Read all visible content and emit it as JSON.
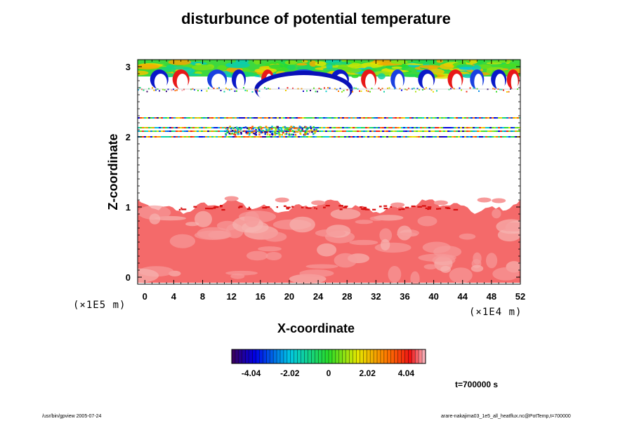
{
  "chart_data": {
    "type": "heatmap",
    "title": "disturbunce of potential temperature",
    "xlabel": "X-coordinate",
    "ylabel": "Z-coordinate",
    "x_unit": "(×1E4 m)",
    "y_unit": "(×1E5 m)",
    "x_ticks": [
      "0",
      "4",
      "8",
      "12",
      "16",
      "20",
      "24",
      "28",
      "32",
      "36",
      "40",
      "44",
      "48",
      "52"
    ],
    "y_ticks": [
      "0",
      "1",
      "2",
      "3"
    ],
    "xlim": [
      -1,
      52
    ],
    "ylim": [
      -0.1,
      3.1
    ],
    "colorbar": {
      "range": [
        -5.05,
        5.05
      ],
      "ticks": [
        "-4.04",
        "-2.02",
        "0",
        "2.02",
        "4.04"
      ]
    },
    "regions": [
      {
        "name": "upper layer",
        "z_range": [
          2.65,
          3.05
        ],
        "pattern": "wave-like mixed positive and negative values"
      },
      {
        "name": "thin bands",
        "z_range": [
          1.98,
          2.28
        ],
        "pattern": "narrow noisy bands"
      },
      {
        "name": "lower layer",
        "z_range": [
          -0.08,
          1.05
        ],
        "pattern": "positive values (~2 to 4)"
      }
    ],
    "annotation": "t=700000 s"
  },
  "footer": {
    "left": "/usr/bin/gpview 2005-07-24",
    "right": "arare-nakajima03_1e5_all_heatflux.nc@PotTemp,t=700000"
  }
}
